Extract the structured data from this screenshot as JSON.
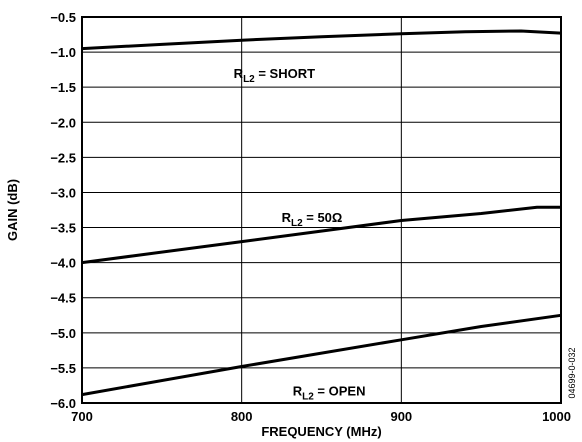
{
  "chart_data": {
    "type": "line",
    "title": "",
    "xlabel": "FREQUENCY (MHz)",
    "ylabel": "GAIN (dB)",
    "xlim": [
      700,
      1000
    ],
    "ylim": [
      -6.0,
      -0.5
    ],
    "x_ticks": [
      700,
      800,
      900,
      1000
    ],
    "y_ticks": [
      -0.5,
      -1.0,
      -1.5,
      -2.0,
      -2.5,
      -3.0,
      -3.5,
      -4.0,
      -4.5,
      -5.0,
      -5.5,
      -6.0
    ],
    "x_tick_labels": [
      "700",
      "800",
      "900",
      "1000"
    ],
    "y_tick_labels": [
      "−0.5",
      "−1.0",
      "−1.5",
      "−2.0",
      "−2.5",
      "−3.0",
      "−3.5",
      "−4.0",
      "−4.5",
      "−5.0",
      "−5.5",
      "−6.0"
    ],
    "grid": "vertical lines at 800, 900; horizontal lines at every 0.5 dB",
    "legend": "none",
    "line_color": "#000000",
    "series": [
      {
        "x": [
          700,
          750,
          800,
          850,
          900,
          940,
          975,
          1000
        ],
        "y": [
          -0.95,
          -0.89,
          -0.83,
          -0.78,
          -0.74,
          -0.71,
          -0.7,
          -0.73
        ]
      },
      {
        "x": [
          700,
          800,
          900,
          950,
          985,
          1000
        ],
        "y": [
          -4.0,
          -3.7,
          -3.4,
          -3.3,
          -3.21,
          -3.21
        ]
      },
      {
        "x": [
          700,
          800,
          900,
          950,
          1000
        ],
        "y": [
          -5.88,
          -5.48,
          -5.1,
          -4.91,
          -4.75
        ]
      }
    ],
    "annotations": [
      {
        "main": "R",
        "sub": "L2",
        "rest": " = SHORT",
        "x": 795,
        "y": -1.3
      },
      {
        "main": "R",
        "sub": "L2",
        "rest": " = 50Ω",
        "x": 825,
        "y": -3.35
      },
      {
        "main": "R",
        "sub": "L2",
        "rest": " = OPEN",
        "x": 832,
        "y": -5.82
      }
    ],
    "figure_id": "04699-0-032"
  }
}
